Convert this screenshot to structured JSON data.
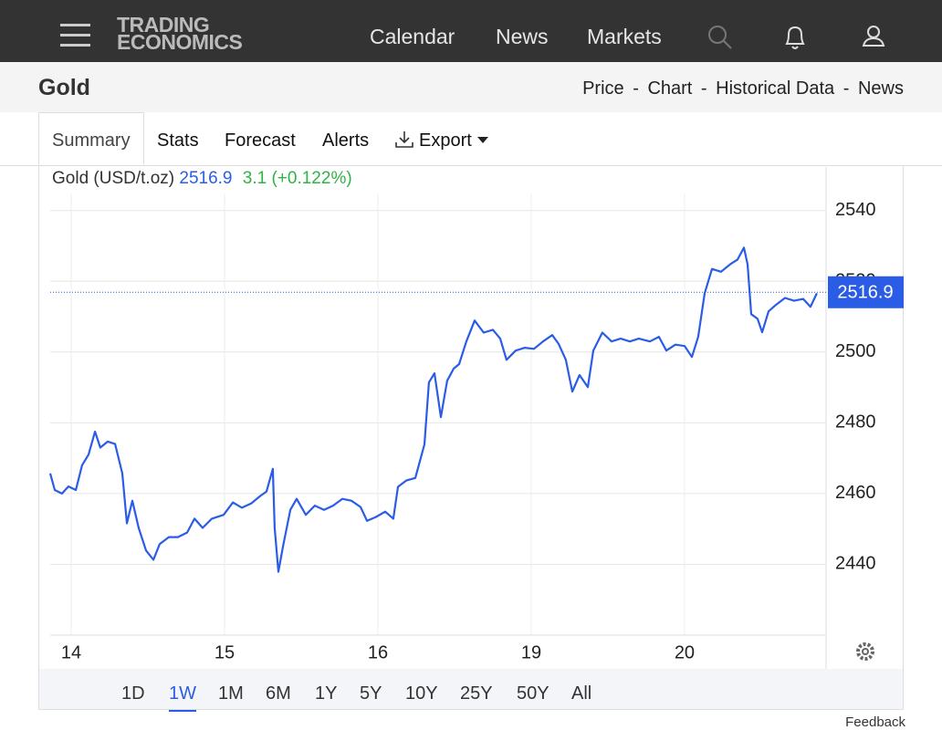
{
  "header": {
    "logo": [
      "TRADING",
      "ECONOMICS"
    ],
    "nav": [
      "Calendar",
      "News",
      "Markets"
    ]
  },
  "page": {
    "title": "Gold",
    "links": [
      "Price",
      "Chart",
      "Historical Data",
      "News"
    ],
    "separator": "-"
  },
  "tabs": [
    "Summary",
    "Stats",
    "Forecast",
    "Alerts",
    "Export"
  ],
  "active_tab": 0,
  "chart_data": {
    "type": "line",
    "series": [
      {
        "name": "Gold (USD/t.oz)",
        "color": "#2b5ce6",
        "values": [
          2465.7,
          2461,
          2460,
          2462,
          2461,
          2468,
          2471,
          2477.5,
          2473,
          2474.7,
          2474,
          2465.7,
          2451.6,
          2458,
          2450.3,
          2443.9,
          2441.3,
          2445.7,
          2447.7,
          2447.7,
          2449,
          2452.9,
          2450.3,
          2452.9,
          2454,
          2457.5,
          2456,
          2457.2,
          2459.3,
          2460.6,
          2467,
          2450.3,
          2437.9,
          2445,
          2455.4,
          2458.5,
          2454,
          2456.6,
          2455.4,
          2456.6,
          2458.5,
          2458,
          2456.2,
          2452.3,
          2453.4,
          2454.9,
          2452.9,
          2461.9,
          2463.7,
          2464.4,
          2473.9,
          2491.4,
          2494,
          2481.6,
          2491.9,
          2495.3,
          2496.6,
          2503,
          2508.9,
          2505.5,
          2506.3,
          2503.8,
          2497.8,
          2500.4,
          2501.2,
          2500.9,
          2503,
          2504.8,
          2502.3,
          2497.8,
          2488.8,
          2493.5,
          2490.1,
          2500.4,
          2505.5,
          2503,
          2503.8,
          2503,
          2503.8,
          2503,
          2504.3,
          2500.4,
          2502.1,
          2501.7,
          2498.6,
          2504.3,
          2516.6,
          2523.5,
          2522.7,
          2524.8,
          2526.1,
          2529.5,
          2524.8,
          2510.7,
          2509.4,
          2505.6,
          2511.5,
          2513.3,
          2515.3,
          2514.5,
          2515,
          2512.8,
          2516.6
        ]
      }
    ],
    "x": [
      -0.137,
      -0.107,
      -0.06,
      -0.018,
      0.03,
      0.071,
      0.113,
      0.155,
      0.19,
      0.238,
      0.286,
      0.333,
      0.363,
      0.399,
      0.44,
      0.488,
      0.536,
      0.577,
      0.637,
      0.696,
      0.756,
      0.804,
      0.857,
      0.917,
      0.994,
      1.054,
      1.113,
      1.173,
      1.232,
      1.274,
      1.315,
      1.327,
      1.351,
      1.381,
      1.429,
      1.47,
      1.53,
      1.589,
      1.649,
      1.708,
      1.768,
      1.827,
      1.887,
      1.929,
      1.988,
      2.048,
      2.101,
      2.131,
      2.185,
      2.244,
      2.304,
      2.333,
      2.369,
      2.411,
      2.452,
      2.494,
      2.53,
      2.577,
      2.631,
      2.69,
      2.75,
      2.798,
      2.839,
      2.899,
      2.958,
      3.018,
      3.077,
      3.137,
      3.179,
      3.226,
      3.268,
      3.315,
      3.369,
      3.405,
      3.464,
      3.524,
      3.583,
      3.643,
      3.702,
      3.774,
      3.833,
      3.881,
      3.94,
      4.0,
      4.048,
      4.089,
      4.131,
      4.179,
      4.238,
      4.298,
      4.345,
      4.387,
      4.411,
      4.435,
      4.476,
      4.506,
      4.548,
      4.595,
      4.655,
      4.714,
      4.774,
      4.821,
      4.863
    ],
    "xlim": [
      -0.137,
      4.923
    ],
    "xticks": [
      {
        "value": 0,
        "label": "14"
      },
      {
        "value": 1,
        "label": "15"
      },
      {
        "value": 2,
        "label": "16"
      },
      {
        "value": 3,
        "label": "19"
      },
      {
        "value": 4,
        "label": "20"
      }
    ],
    "ylim": [
      2420,
      2552.3
    ],
    "yticks": [
      2440,
      2460,
      2480,
      2500,
      2520,
      2540
    ],
    "grid": true,
    "last_value": 2516.9,
    "change_text": "3.1 (+0.122%)"
  },
  "ranges": [
    "1D",
    "1W",
    "1M",
    "6M",
    "1Y",
    "5Y",
    "10Y",
    "25Y",
    "50Y",
    "All"
  ],
  "active_range": 1,
  "feedback": "Feedback"
}
